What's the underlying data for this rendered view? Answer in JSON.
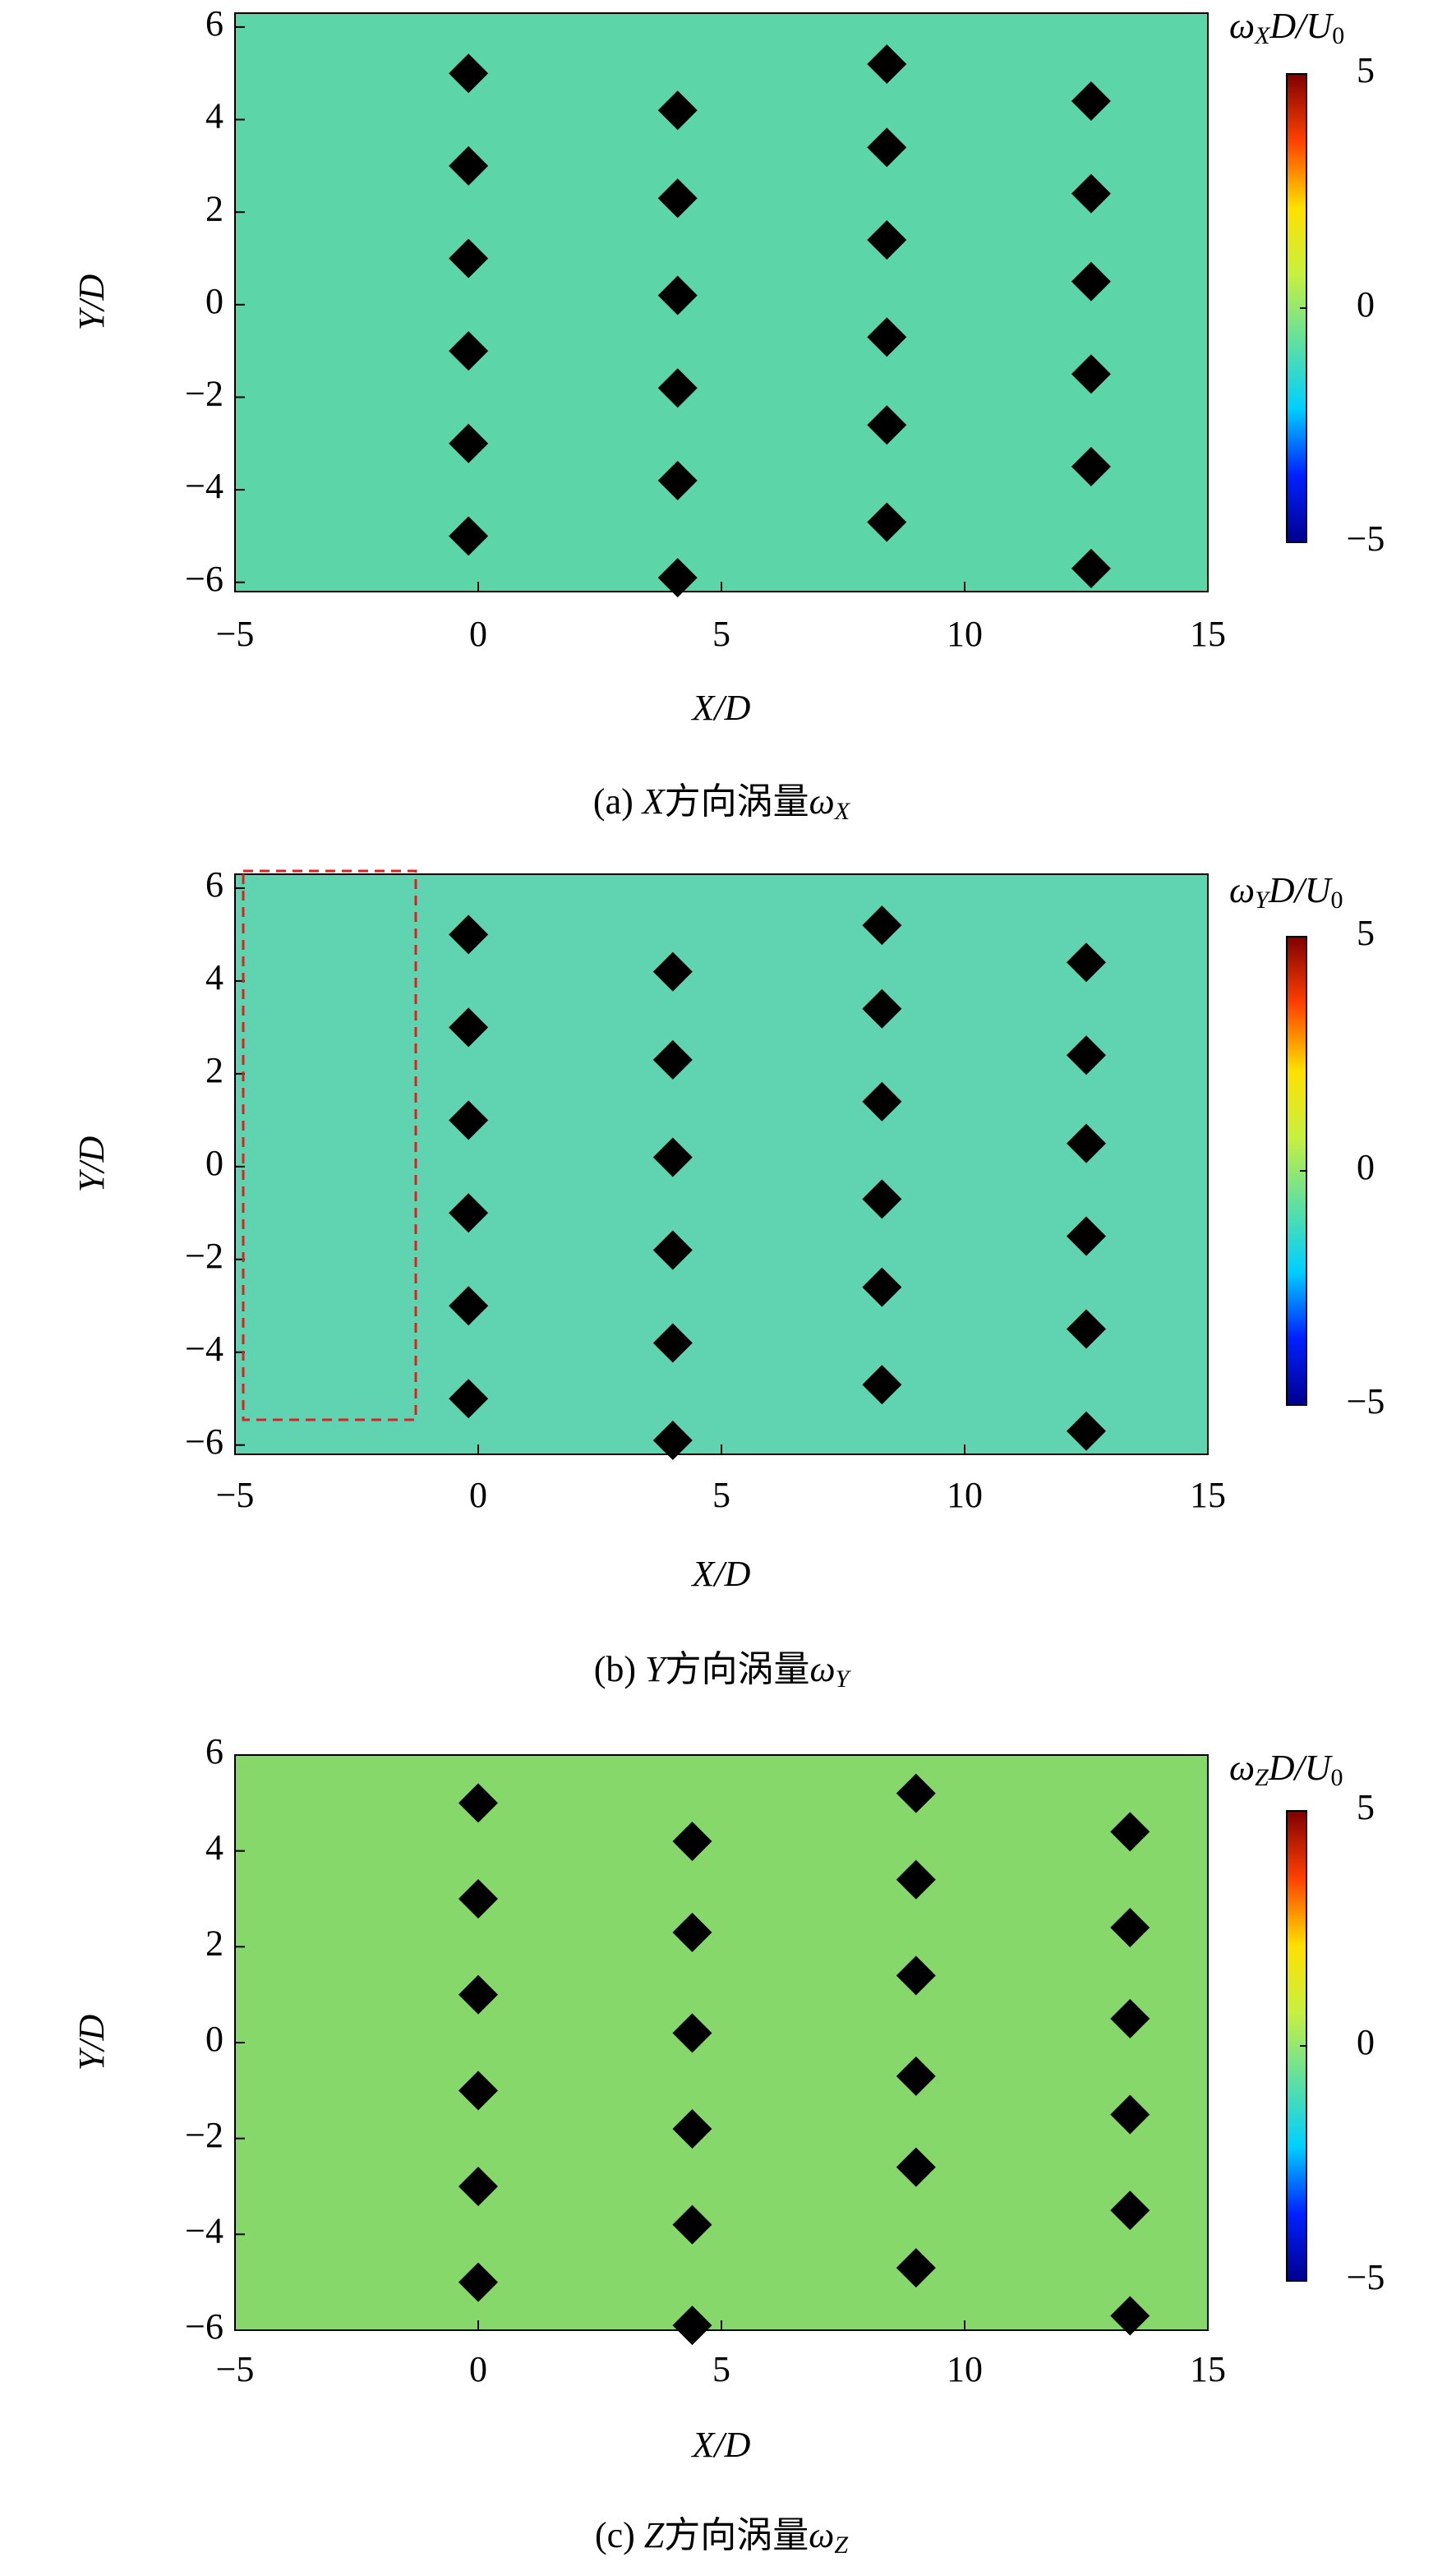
{
  "chart_data": [
    {
      "type": "contour",
      "xlabel": "X/D",
      "ylabel": "Y/D",
      "caption": [
        "(a) ",
        "X",
        "方向涡量",
        "ω",
        "X"
      ],
      "colorbar_label": [
        "ω",
        "X",
        "D/U",
        "0"
      ],
      "xlim": [
        -5,
        15
      ],
      "ylim": [
        -6.2,
        6.3
      ],
      "xticks": [
        {
          "value": -5,
          "label": "−5"
        },
        0,
        5,
        10,
        15
      ],
      "yticks": [
        {
          "value": -6,
          "label": "−6"
        },
        {
          "value": -4,
          "label": "−4"
        },
        {
          "value": -2,
          "label": "−2"
        },
        0,
        2,
        4,
        6
      ],
      "clim": [
        -5,
        5
      ],
      "cticks": [
        {
          "value": -5,
          "label": "−5"
        },
        0,
        5
      ],
      "colormap": [
        "#00008f",
        "#0020ff",
        "#00d0ff",
        "#60e0a0",
        "#c8f040",
        "#ffe000",
        "#ff4000",
        "#800000"
      ],
      "field_color": "#5cd6a8",
      "marker_color": "#000000",
      "markers": {
        "x": [
          -0.2,
          -0.2,
          -0.2,
          -0.2,
          -0.2,
          -0.2,
          4.1,
          4.1,
          4.1,
          4.1,
          4.1,
          4.1,
          8.4,
          8.4,
          8.4,
          8.4,
          8.4,
          8.4,
          12.6,
          12.6,
          12.6,
          12.6,
          12.6,
          12.6
        ],
        "y": [
          5,
          3,
          1,
          -1,
          -3,
          -5,
          4.2,
          2.3,
          0.2,
          -1.8,
          -3.8,
          -5.9,
          5.2,
          3.4,
          1.4,
          -0.7,
          -2.6,
          -4.7,
          4.4,
          2.4,
          0.5,
          -1.5,
          -3.5,
          -5.7
        ]
      }
    },
    {
      "type": "contour",
      "xlabel": "X/D",
      "ylabel": "Y/D",
      "caption": [
        "(b) ",
        "Y",
        "方向涡量",
        "ω",
        "Y"
      ],
      "colorbar_label": [
        "ω",
        "Y",
        "D/U",
        "0"
      ],
      "xlim": [
        -5,
        15
      ],
      "ylim": [
        -6.2,
        6.3
      ],
      "xticks": [
        {
          "value": -5,
          "label": "−5"
        },
        0,
        5,
        10,
        15
      ],
      "yticks": [
        {
          "value": -6,
          "label": "−6"
        },
        {
          "value": -4,
          "label": "−4"
        },
        {
          "value": -2,
          "label": "−2"
        },
        0,
        2,
        4,
        6
      ],
      "clim": [
        -5,
        5
      ],
      "cticks": [
        {
          "value": -5,
          "label": "−5"
        },
        0,
        5
      ],
      "colormap": [
        "#00008f",
        "#0020ff",
        "#00d0ff",
        "#60e0a0",
        "#c8f040",
        "#ffe000",
        "#ff4000",
        "#800000"
      ],
      "field_color": "#60d4b0",
      "marker_color": "#000000",
      "markers": {
        "x": [
          -0.2,
          -0.2,
          -0.2,
          -0.2,
          -0.2,
          -0.2,
          4.0,
          4.0,
          4.0,
          4.0,
          4.0,
          4.0,
          8.3,
          8.3,
          8.3,
          8.3,
          8.3,
          8.3,
          12.5,
          12.5,
          12.5,
          12.5,
          12.5,
          12.5
        ],
        "y": [
          5,
          3,
          1,
          -1,
          -3,
          -5,
          4.2,
          2.3,
          0.2,
          -1.8,
          -3.8,
          -5.9,
          5.2,
          3.4,
          1.4,
          -0.7,
          -2.6,
          -4.7,
          4.4,
          2.4,
          0.5,
          -1.5,
          -3.5,
          -5.7
        ]
      }
    },
    {
      "type": "contour",
      "xlabel": "X/D",
      "ylabel": "Y/D",
      "caption": [
        "(c) ",
        "Z",
        "方向涡量",
        "ω",
        "Z"
      ],
      "colorbar_label": [
        "ω",
        "Z",
        "D/U",
        "0"
      ],
      "xlim": [
        -5,
        15
      ],
      "ylim": [
        -6,
        6
      ],
      "xticks": [
        {
          "value": -5,
          "label": "−5"
        },
        0,
        5,
        10,
        15
      ],
      "yticks": [
        {
          "value": -6,
          "label": "−6"
        },
        {
          "value": -4,
          "label": "−4"
        },
        {
          "value": -2,
          "label": "−2"
        },
        0,
        2,
        4,
        6
      ],
      "clim": [
        -5,
        5
      ],
      "cticks": [
        {
          "value": -5,
          "label": "−5"
        },
        0,
        5
      ],
      "colormap": [
        "#00008f",
        "#0020ff",
        "#00d0ff",
        "#60e0a0",
        "#c8f040",
        "#ffe000",
        "#ff4000",
        "#800000"
      ],
      "field_color": "#86d86a",
      "marker_color": "#000000",
      "markers": {
        "x": [
          0,
          0,
          0,
          0,
          0,
          0,
          4.4,
          4.4,
          4.4,
          4.4,
          4.4,
          4.4,
          9.0,
          9.0,
          9.0,
          9.0,
          9.0,
          9.0,
          13.4,
          13.4,
          13.4,
          13.4,
          13.4,
          13.4
        ],
        "y": [
          5,
          3,
          1,
          -1,
          -3,
          -5,
          4.2,
          2.3,
          0.2,
          -1.8,
          -3.8,
          -5.9,
          5.2,
          3.4,
          1.4,
          -0.7,
          -2.6,
          -4.7,
          4.4,
          2.4,
          0.5,
          -1.5,
          -3.5,
          -5.7
        ]
      }
    }
  ]
}
